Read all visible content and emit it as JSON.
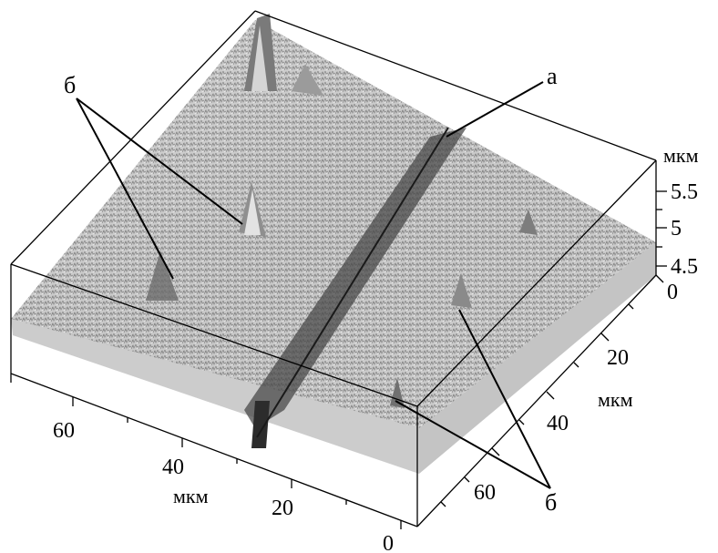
{
  "figure": {
    "colors": {
      "surface_light": "#f2f2f2",
      "surface_dark": "#3a3a3a",
      "frame": "#000000"
    },
    "z_axis": {
      "unit": "мкм",
      "ticks": [
        "5.5",
        "5",
        "4.5"
      ]
    },
    "right_axis": {
      "unit": "мкм",
      "ticks": [
        "0",
        "20",
        "40",
        "60"
      ]
    },
    "front_axis": {
      "unit": "мкм",
      "ticks": [
        "60",
        "40",
        "20",
        "0"
      ]
    },
    "labels": {
      "a": "а",
      "b_left": "б",
      "b_right": "б"
    }
  }
}
